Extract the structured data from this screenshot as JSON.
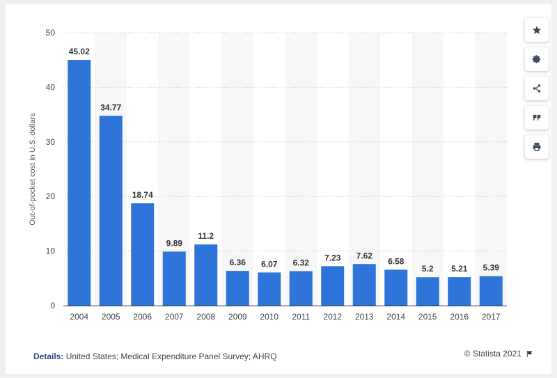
{
  "chart_data": {
    "type": "bar",
    "categories": [
      "2004",
      "2005",
      "2006",
      "2007",
      "2008",
      "2009",
      "2010",
      "2011",
      "2012",
      "2013",
      "2014",
      "2015",
      "2016",
      "2017"
    ],
    "values": [
      45.02,
      34.77,
      18.74,
      9.89,
      11.2,
      6.36,
      6.07,
      6.32,
      7.23,
      7.62,
      6.58,
      5.2,
      5.21,
      5.39
    ],
    "value_labels": [
      "45.02",
      "34.77",
      "18.74",
      "9.89",
      "11.2",
      "6.36",
      "6.07",
      "6.32",
      "7.23",
      "7.62",
      "6.58",
      "5.2",
      "5.21",
      "5.39"
    ],
    "ylabel": "Out-of-pocket cost in U.S. dollars",
    "ylim": [
      0,
      50
    ],
    "yticks": [
      "0",
      "10",
      "20",
      "30",
      "40",
      "50"
    ],
    "grid": true,
    "bar_color": "#2e74d9",
    "legend": "none"
  },
  "footer": {
    "details_label": "Details:",
    "details_text": "United States; Medical Expenditure Panel Survey; AHRQ",
    "credit": "© Statista 2021"
  },
  "toolbar": {
    "icons": [
      "star-icon",
      "gear-icon",
      "share-icon",
      "quote-icon",
      "print-icon"
    ]
  }
}
